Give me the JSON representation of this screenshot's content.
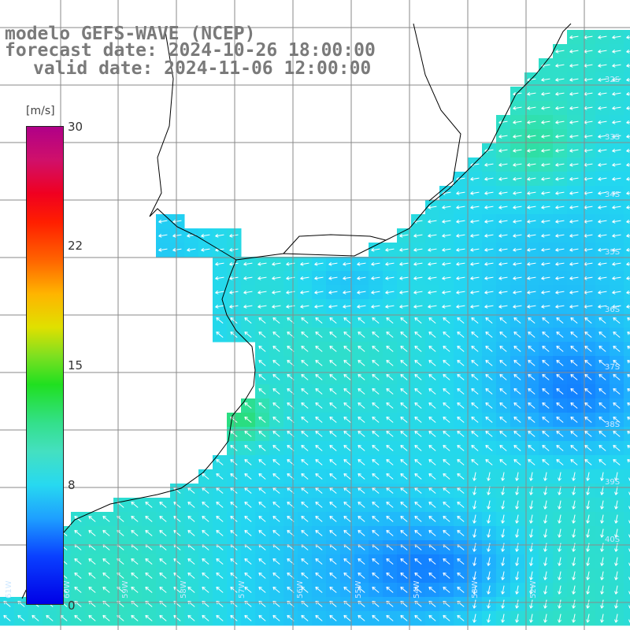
{
  "title": {
    "model": "modelo GEFS-WAVE (NCEP)",
    "forecast": "forecast date: 2024-10-26 18:00:00",
    "valid": "valid date: 2024-11-06 12:00:00"
  },
  "legend": {
    "unit": "[m/s]",
    "ticks": [
      "30",
      "22",
      "15",
      "8",
      "0"
    ],
    "range": [
      0,
      30
    ]
  },
  "axes": {
    "lat_labels": [
      "32S",
      "33S",
      "34S",
      "35S",
      "36S",
      "37S",
      "38S",
      "39S",
      "40S"
    ],
    "lon_labels": [
      "61W",
      "60W",
      "59W",
      "58W",
      "57W",
      "56W",
      "55W",
      "54W",
      "53W",
      "52W"
    ]
  },
  "colors": {
    "land": "#ffffff",
    "grid": "#8a8a8a",
    "coast": "#000000",
    "arrow": "#ffffff",
    "title": "#7a7a7a"
  }
}
